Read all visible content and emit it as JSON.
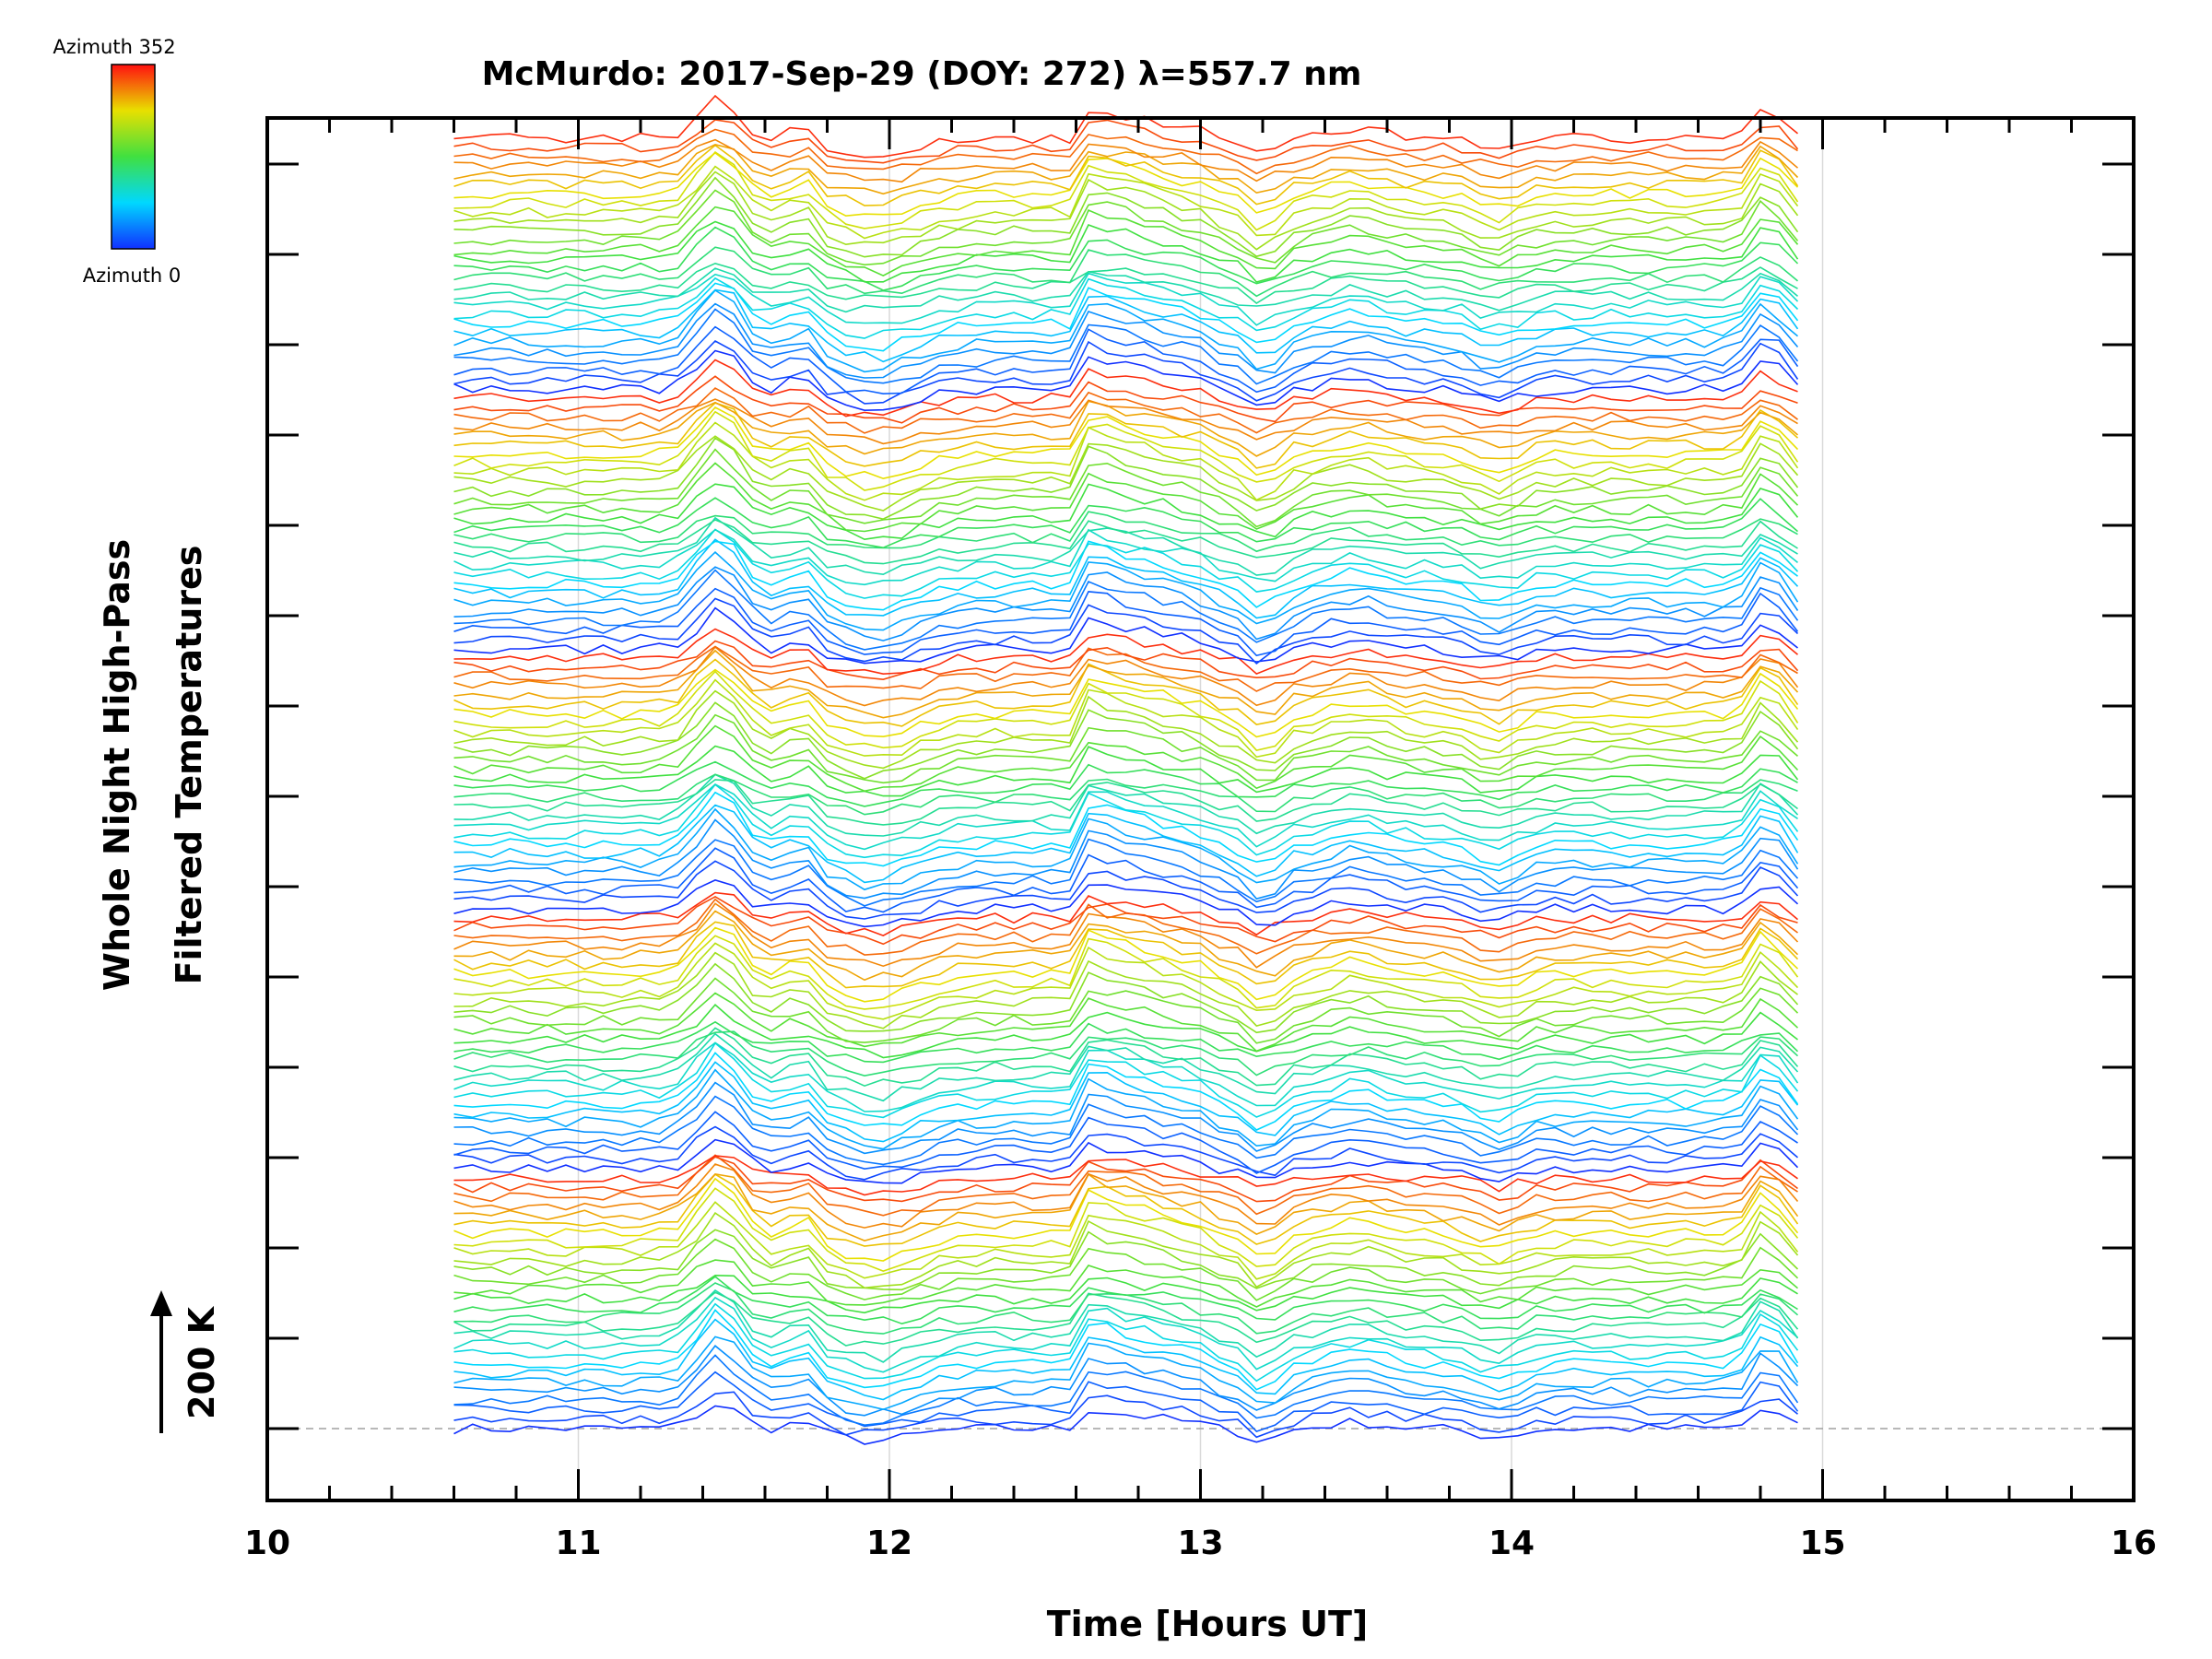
{
  "chart_data": {
    "type": "line",
    "title": "McMurdo: 2017-Sep-29 (DOY: 272) λ=557.7 nm",
    "xlabel": "Time [Hours UT]",
    "ylabel_line1": "Whole Night High-Pass",
    "ylabel_line2": "Filtered Temperatures",
    "xlim": [
      10,
      16
    ],
    "x_ticks": [
      "10",
      "11",
      "12",
      "13",
      "14",
      "15",
      "16"
    ],
    "x_gridlines": [
      11,
      12,
      13,
      14,
      15
    ],
    "scale_label": "200 K",
    "scale_value_K": 200,
    "colorbar": {
      "top_label": "Azimuth 352",
      "bottom_label": "Azimuth 0",
      "min": 0,
      "max": 352,
      "colormap": "rainbow (blue→cyan→green→yellow→red)"
    },
    "series_count": 140,
    "data_time_range": [
      10.6,
      14.92
    ],
    "sample_step_hours": 0.06,
    "common_features": [
      {
        "time": 11.45,
        "amplitude_K": 120,
        "note": "sharp warm peak"
      },
      {
        "time": 11.9,
        "amplitude_K": -70,
        "note": "trough"
      },
      {
        "time": 12.65,
        "amplitude_K": 110,
        "note": "step increase"
      },
      {
        "time": 13.2,
        "amplitude_K": -60,
        "note": "dip"
      },
      {
        "time": 14.8,
        "amplitude_K": 100,
        "note": "end peak"
      }
    ],
    "legend_placement": "top-left colorbar"
  },
  "colors": {
    "axis": "#000000",
    "gridline": "#d9d9d9",
    "baseline": "#a0a0a0"
  }
}
